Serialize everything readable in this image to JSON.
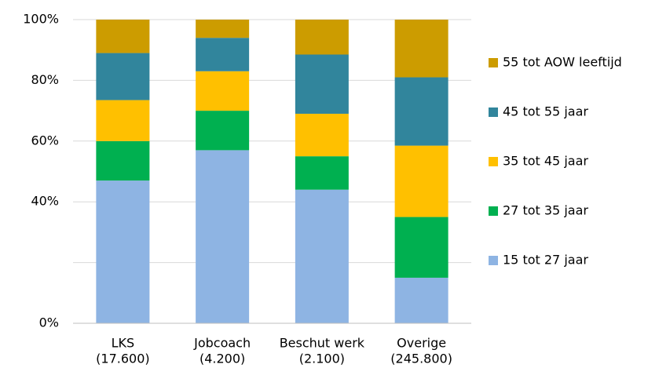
{
  "chart_data": {
    "type": "stacked-bar",
    "categories": [
      "LKS",
      "Jobcoach",
      "Beschut werk",
      "Overige"
    ],
    "category_counts": [
      "(17.600)",
      "(4.200)",
      "(2.100)",
      "(245.800)"
    ],
    "series": [
      {
        "name": "15 tot 27 jaar",
        "color": "#8eb4e3",
        "values": [
          47,
          57,
          44,
          15
        ]
      },
      {
        "name": "27 tot 35 jaar",
        "color": "#00b050",
        "values": [
          13,
          13,
          11,
          20
        ]
      },
      {
        "name": "35 tot 45 jaar",
        "color": "#ffc000",
        "values": [
          13.5,
          13,
          14,
          23.5
        ]
      },
      {
        "name": "45 tot 55 jaar",
        "color": "#31859c",
        "values": [
          15.5,
          11,
          19.5,
          22.5
        ]
      },
      {
        "name": "55 tot AOW leeftijd",
        "color": "#cc9c00",
        "values": [
          11,
          6,
          11.5,
          19
        ]
      }
    ],
    "ylim": [
      0,
      100
    ],
    "yticks": [
      {
        "value": 0,
        "label": "0%"
      },
      {
        "value": 40,
        "label": "40%"
      },
      {
        "value": 60,
        "label": "60%"
      },
      {
        "value": 80,
        "label": "80%"
      },
      {
        "value": 100,
        "label": "100%"
      }
    ],
    "ygrid": [
      20,
      40,
      60,
      80,
      100
    ],
    "legend": "right"
  }
}
